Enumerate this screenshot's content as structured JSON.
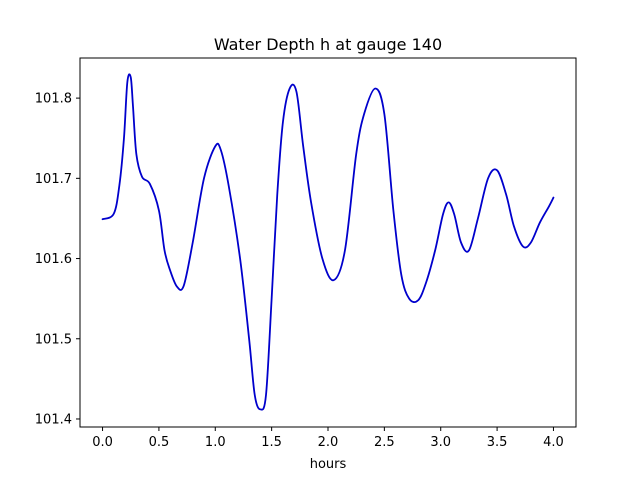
{
  "chart_data": {
    "type": "line",
    "title": "Water Depth h at gauge 140",
    "xlabel": "hours",
    "ylabel": "",
    "xlim": [
      -0.2,
      4.2
    ],
    "ylim": [
      101.39,
      101.85
    ],
    "xticks": [
      0.0,
      0.5,
      1.0,
      1.5,
      2.0,
      2.5,
      3.0,
      3.5,
      4.0
    ],
    "xtick_labels": [
      "0.0",
      "0.5",
      "1.0",
      "1.5",
      "2.0",
      "2.5",
      "3.0",
      "3.5",
      "4.0"
    ],
    "yticks": [
      101.4,
      101.5,
      101.6,
      101.7,
      101.8
    ],
    "ytick_labels": [
      "101.4",
      "101.5",
      "101.6",
      "101.7",
      "101.8"
    ],
    "grid": false,
    "series": [
      {
        "color": "#0000cc",
        "x": [
          0.0,
          0.1,
          0.15,
          0.19,
          0.22,
          0.25,
          0.27,
          0.3,
          0.35,
          0.42,
          0.5,
          0.55,
          0.6,
          0.66,
          0.72,
          0.8,
          0.9,
          1.0,
          1.05,
          1.12,
          1.22,
          1.3,
          1.35,
          1.4,
          1.45,
          1.5,
          1.55,
          1.6,
          1.66,
          1.72,
          1.78,
          1.85,
          1.95,
          2.05,
          2.15,
          2.25,
          2.32,
          2.42,
          2.5,
          2.58,
          2.65,
          2.72,
          2.8,
          2.87,
          2.95,
          3.02,
          3.07,
          3.12,
          3.18,
          3.25,
          3.33,
          3.42,
          3.5,
          3.58,
          3.65,
          3.73,
          3.8,
          3.88,
          3.96,
          4.0
        ],
        "y": [
          101.649,
          101.656,
          101.692,
          101.75,
          101.82,
          101.826,
          101.79,
          101.73,
          101.702,
          101.693,
          101.66,
          101.61,
          101.585,
          101.565,
          101.566,
          101.62,
          101.7,
          101.74,
          101.735,
          101.69,
          101.6,
          101.5,
          101.43,
          101.412,
          101.43,
          101.55,
          101.68,
          101.77,
          101.812,
          101.808,
          101.74,
          101.67,
          101.6,
          101.573,
          101.61,
          101.73,
          101.78,
          101.812,
          101.78,
          101.66,
          101.58,
          101.55,
          101.548,
          101.57,
          101.61,
          101.655,
          101.67,
          101.655,
          101.62,
          101.61,
          101.65,
          101.7,
          101.71,
          101.68,
          101.64,
          101.615,
          101.62,
          101.645,
          101.665,
          101.676
        ]
      }
    ]
  }
}
